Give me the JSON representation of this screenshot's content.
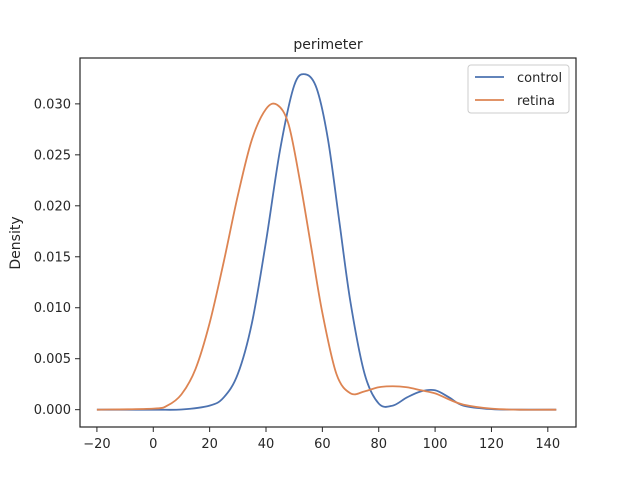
{
  "chart_data": {
    "type": "line",
    "title": "perimeter",
    "xlabel": "",
    "ylabel": "Density",
    "xlim": [
      -26,
      150
    ],
    "ylim": [
      -0.0017,
      0.0345
    ],
    "xticks": [
      -20,
      0,
      20,
      40,
      60,
      80,
      100,
      120,
      140
    ],
    "xtick_labels": [
      "−20",
      "0",
      "20",
      "40",
      "60",
      "80",
      "100",
      "120",
      "140"
    ],
    "yticks": [
      0.0,
      0.005,
      0.01,
      0.015,
      0.02,
      0.025,
      0.03
    ],
    "ytick_labels": [
      "0.000",
      "0.005",
      "0.010",
      "0.015",
      "0.020",
      "0.025",
      "0.030"
    ],
    "grid": false,
    "legend_position": "top-right",
    "series": [
      {
        "name": "control",
        "color": "#4c72b0",
        "x": [
          -20,
          0,
          10,
          20,
          25,
          30,
          35,
          40,
          45,
          50,
          54,
          58,
          62,
          66,
          70,
          75,
          80,
          85,
          90,
          95,
          100,
          105,
          110,
          120,
          130,
          143
        ],
        "y": [
          0.0,
          0.0,
          2e-05,
          0.0004,
          0.0012,
          0.0035,
          0.0085,
          0.0165,
          0.0255,
          0.0318,
          0.0329,
          0.0315,
          0.0265,
          0.0185,
          0.0105,
          0.0035,
          0.0006,
          0.0004,
          0.0012,
          0.0018,
          0.0019,
          0.0012,
          0.0004,
          5e-05,
          0.0,
          0.0
        ]
      },
      {
        "name": "retina",
        "color": "#dd8452",
        "x": [
          -20,
          0,
          5,
          10,
          15,
          20,
          25,
          30,
          35,
          40,
          44,
          48,
          52,
          56,
          60,
          65,
          70,
          75,
          80,
          85,
          90,
          95,
          100,
          105,
          110,
          120,
          130,
          143
        ],
        "y": [
          0.0,
          0.0001,
          0.0004,
          0.0015,
          0.004,
          0.0085,
          0.0145,
          0.021,
          0.0265,
          0.0295,
          0.0299,
          0.028,
          0.0225,
          0.016,
          0.0095,
          0.0035,
          0.0016,
          0.0018,
          0.0022,
          0.0023,
          0.0022,
          0.0019,
          0.0016,
          0.001,
          0.0005,
          0.0001,
          0.0,
          0.0
        ]
      }
    ]
  }
}
